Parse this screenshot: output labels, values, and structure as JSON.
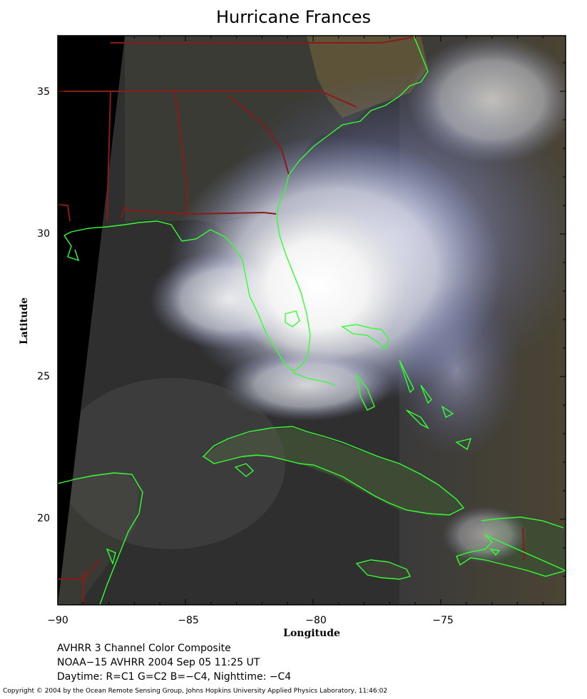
{
  "title": "Hurricane Frances",
  "axes": {
    "xlabel": "Longitude",
    "ylabel": "Latitude",
    "x_ticks": [
      "−90",
      "−85",
      "−80",
      "−75"
    ],
    "y_ticks": [
      "35",
      "30",
      "25",
      "20"
    ]
  },
  "caption": {
    "line1": "AVHRR 3 Channel Color Composite",
    "line2": "NOAA−15 AVHRR 2004 Sep 05 11:25 UT",
    "line3": "Daytime: R=C1 G=C2 B=−C4, Nighttime: −C4"
  },
  "copyright": "Copyright © 2004 by the Ocean Remote Sensing Group, Johns Hopkins University Applied Physics Laboratory, 11:46:02",
  "colors": {
    "coastline": "#33ff33",
    "borders": "#8b1a1a",
    "ocean": "#2e2e2e",
    "cloud": "#f2f2f2"
  }
}
